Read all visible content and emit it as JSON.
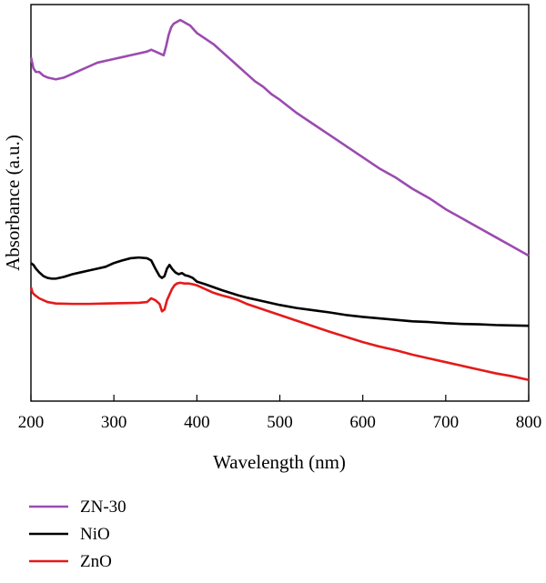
{
  "chart_data": {
    "type": "line",
    "xlabel": "Wavelength (nm)",
    "ylabel": "Absorbance (a.u.)",
    "xlim": [
      200,
      800
    ],
    "ylim": [
      0,
      1
    ],
    "x_ticks": [
      "200",
      "300",
      "400",
      "500",
      "600",
      "700",
      "800"
    ],
    "y_ticks_shown": false,
    "grid": false,
    "legend_placement": "bottom-left, below plot",
    "series": [
      {
        "name": "ZN-30",
        "color": "#9b4bb0",
        "x": [
          200,
          203,
          206,
          210,
          215,
          220,
          230,
          240,
          250,
          260,
          270,
          280,
          290,
          300,
          310,
          320,
          330,
          340,
          345,
          350,
          355,
          360,
          363,
          366,
          369,
          372,
          376,
          380,
          384,
          388,
          392,
          396,
          400,
          410,
          420,
          430,
          440,
          450,
          460,
          470,
          480,
          490,
          500,
          520,
          540,
          560,
          580,
          600,
          620,
          640,
          660,
          680,
          700,
          720,
          740,
          760,
          780,
          800
        ],
        "values": [
          0.9,
          0.87,
          0.86,
          0.86,
          0.85,
          0.845,
          0.84,
          0.845,
          0.855,
          0.865,
          0.875,
          0.885,
          0.89,
          0.895,
          0.9,
          0.905,
          0.91,
          0.915,
          0.92,
          0.915,
          0.91,
          0.905,
          0.93,
          0.96,
          0.98,
          0.99,
          0.995,
          1.0,
          0.995,
          0.99,
          0.985,
          0.975,
          0.965,
          0.95,
          0.935,
          0.915,
          0.895,
          0.875,
          0.855,
          0.835,
          0.82,
          0.8,
          0.785,
          0.75,
          0.72,
          0.69,
          0.66,
          0.63,
          0.6,
          0.575,
          0.545,
          0.52,
          0.49,
          0.465,
          0.44,
          0.415,
          0.39,
          0.365
        ]
      },
      {
        "name": "NiO",
        "color": "#000000",
        "x": [
          200,
          203,
          206,
          210,
          215,
          220,
          225,
          230,
          240,
          250,
          260,
          270,
          280,
          290,
          300,
          310,
          320,
          330,
          340,
          345,
          350,
          355,
          358,
          361,
          364,
          367,
          370,
          374,
          378,
          382,
          386,
          390,
          395,
          400,
          410,
          420,
          430,
          440,
          450,
          460,
          480,
          500,
          520,
          540,
          560,
          580,
          600,
          620,
          640,
          660,
          680,
          700,
          720,
          740,
          760,
          780,
          800
        ],
        "values": [
          0.345,
          0.34,
          0.33,
          0.32,
          0.31,
          0.305,
          0.303,
          0.303,
          0.308,
          0.315,
          0.32,
          0.325,
          0.33,
          0.335,
          0.345,
          0.352,
          0.358,
          0.36,
          0.358,
          0.352,
          0.33,
          0.31,
          0.305,
          0.31,
          0.33,
          0.34,
          0.33,
          0.32,
          0.315,
          0.318,
          0.312,
          0.31,
          0.305,
          0.295,
          0.288,
          0.28,
          0.272,
          0.265,
          0.258,
          0.252,
          0.242,
          0.232,
          0.224,
          0.218,
          0.212,
          0.205,
          0.2,
          0.196,
          0.192,
          0.188,
          0.186,
          0.183,
          0.181,
          0.18,
          0.178,
          0.177,
          0.176
        ]
      },
      {
        "name": "ZnO",
        "color": "#e51a1a",
        "x": [
          200,
          202,
          205,
          210,
          220,
          230,
          250,
          270,
          290,
          310,
          330,
          340,
          345,
          350,
          355,
          358,
          361,
          364,
          367,
          370,
          373,
          376,
          380,
          385,
          390,
          395,
          400,
          410,
          420,
          430,
          440,
          450,
          460,
          480,
          500,
          520,
          540,
          560,
          580,
          600,
          620,
          640,
          660,
          680,
          700,
          720,
          740,
          760,
          780,
          800
        ],
        "values": [
          0.28,
          0.265,
          0.258,
          0.25,
          0.24,
          0.236,
          0.235,
          0.235,
          0.236,
          0.237,
          0.238,
          0.24,
          0.25,
          0.245,
          0.235,
          0.215,
          0.22,
          0.245,
          0.26,
          0.275,
          0.285,
          0.29,
          0.292,
          0.29,
          0.29,
          0.288,
          0.285,
          0.275,
          0.265,
          0.258,
          0.252,
          0.245,
          0.235,
          0.22,
          0.205,
          0.19,
          0.175,
          0.16,
          0.146,
          0.132,
          0.12,
          0.11,
          0.098,
          0.088,
          0.078,
          0.068,
          0.058,
          0.048,
          0.04,
          0.03
        ]
      }
    ]
  }
}
